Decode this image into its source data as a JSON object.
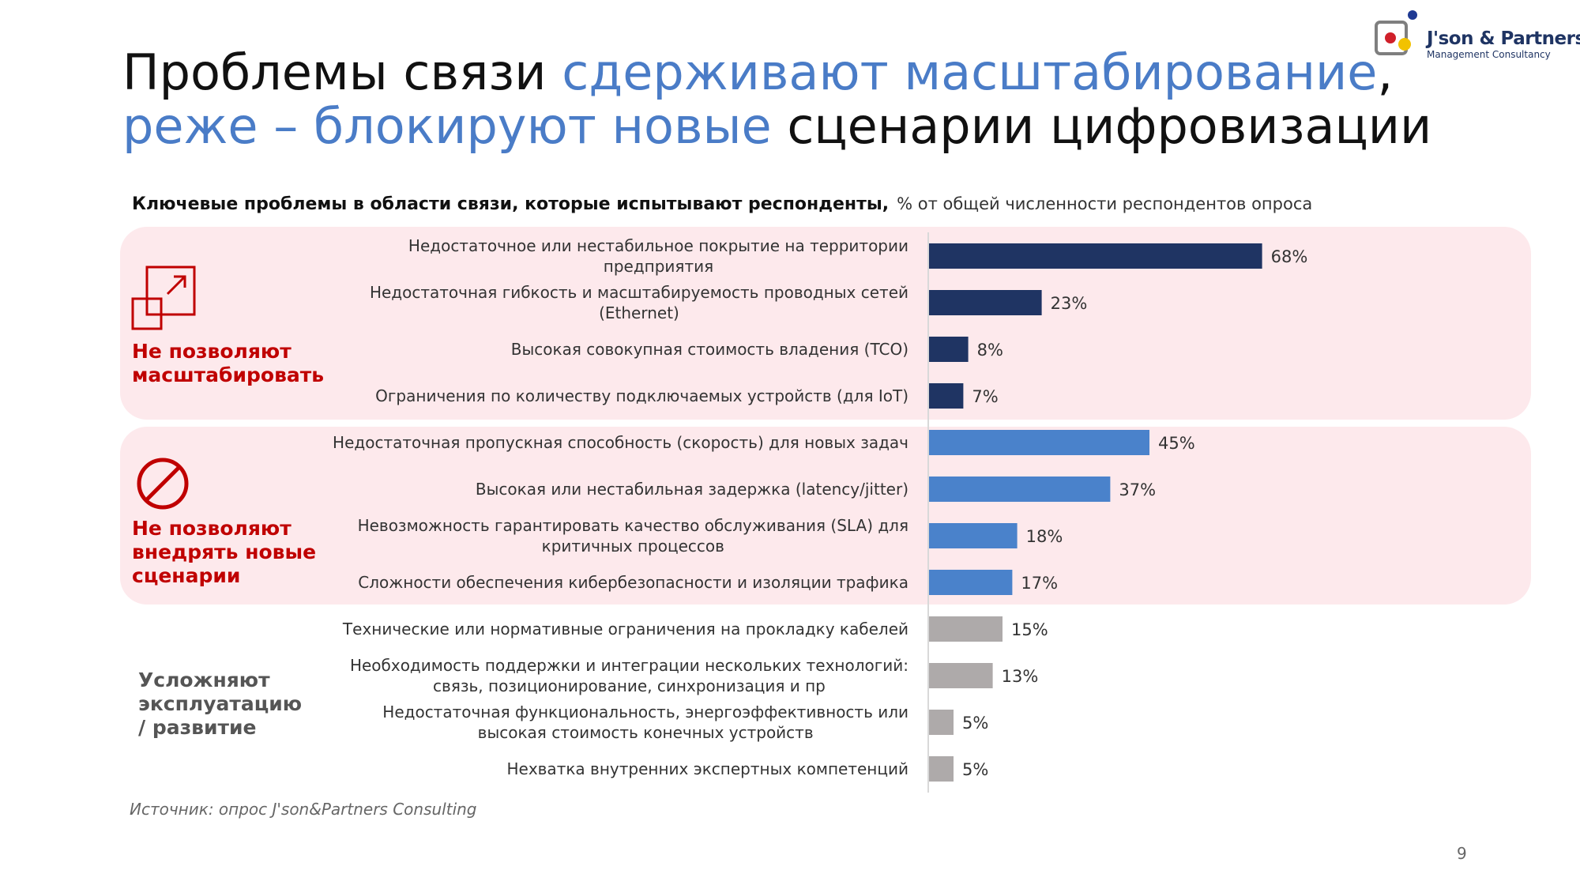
{
  "title": {
    "part1": "Проблемы связи ",
    "part2": "сдерживают масштабирование",
    "part3": ",",
    "part4": "реже – блокируют новые",
    "part5": " сценарии цифровизации"
  },
  "logo": {
    "name": "J'son & Partners",
    "subtitle": "Management Consultancy"
  },
  "subtitle": {
    "bold": "Ключевые проблемы в области связи, которые испытывают респонденты,",
    "light": "% от общей численности респондентов опроса"
  },
  "groups": [
    {
      "label_lines": [
        "Не позволяют",
        "масштабировать"
      ],
      "icon": "expand-arrow-icon"
    },
    {
      "label_lines": [
        "Не позволяют",
        "внедрять новые",
        "сценарии"
      ],
      "icon": "prohibited-icon"
    },
    {
      "label_lines": [
        "Усложняют",
        "эксплуатацию",
        "/ развитие"
      ]
    }
  ],
  "colors": {
    "group1": "#1f3463",
    "group2": "#4a82cb",
    "group3": "#aeaaaa",
    "band": "#fde9ec",
    "accent_red": "#c00000"
  },
  "chart_data": {
    "type": "bar",
    "orientation": "horizontal",
    "unit": "%",
    "xlim": [
      0,
      100
    ],
    "categories": [
      [
        "Недостаточное или нестабильное покрытие на территории",
        "предприятия"
      ],
      [
        "Недостаточная гибкость и масштабируемость проводных сетей",
        "(Ethernet)"
      ],
      [
        "Высокая совокупная стоимость владения (TCO)"
      ],
      [
        "Ограничения по количеству подключаемых устройств (для IoT)"
      ],
      [
        "Недостаточная пропускная способность (скорость) для новых задач"
      ],
      [
        "Высокая или нестабильная задержка (latency/jitter)"
      ],
      [
        "Невозможность гарантировать качество обслуживания (SLA) для",
        "критичных процессов"
      ],
      [
        "Сложности обеспечения кибербезопасности и изоляции трафика"
      ],
      [
        "Технические или нормативные ограничения на прокладку кабелей"
      ],
      [
        "Необходимость поддержки и интеграции нескольких технологий:",
        "связь, позиционирование, синхронизация и пр"
      ],
      [
        "Недостаточная функциональность, энергоэффективность или",
        "высокая стоимость конечных устройств"
      ],
      [
        "Нехватка внутренних экспертных компетенций"
      ]
    ],
    "values": [
      68,
      23,
      8,
      7,
      45,
      37,
      18,
      17,
      15,
      13,
      5,
      5
    ],
    "value_labels": [
      "68%",
      "23%",
      "8%",
      "7%",
      "45%",
      "37%",
      "18%",
      "17%",
      "15%",
      "13%",
      "5%",
      "5%"
    ],
    "group_index": [
      0,
      0,
      0,
      0,
      1,
      1,
      1,
      1,
      2,
      2,
      2,
      2
    ]
  },
  "source": "Источник: опрос J'son&Partners Consulting",
  "page_number": "9"
}
